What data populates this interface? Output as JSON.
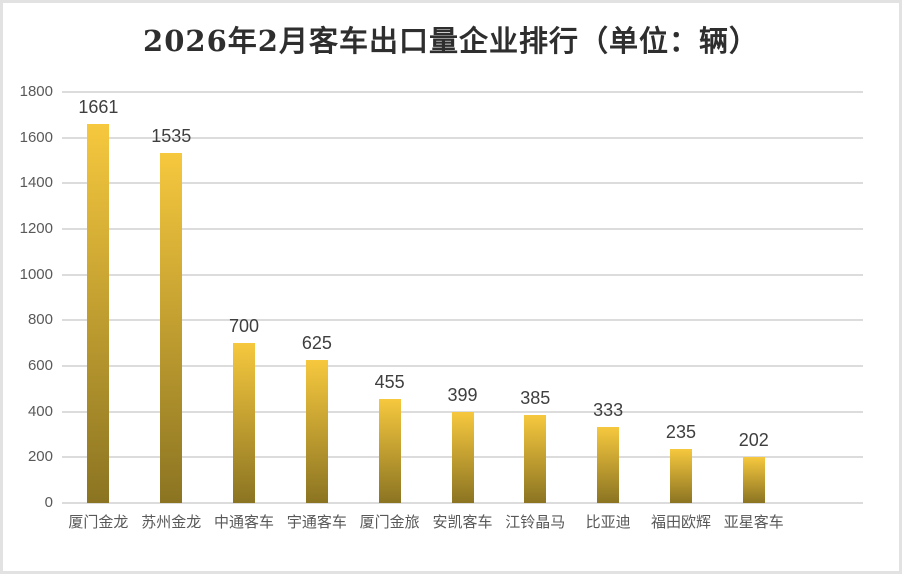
{
  "title": "2026年2月客车出口量企业排行（单位：辆）",
  "chart_data": {
    "type": "bar",
    "title": "2026年2月客车出口量企业排行（单位：辆）",
    "unit_label": "辆",
    "categories": [
      "厦门金龙",
      "苏州金龙",
      "中通客车",
      "宇通客车",
      "厦门金旅",
      "安凯客车",
      "江铃晶马",
      "比亚迪",
      "福田欧辉",
      "亚星客车"
    ],
    "values": [
      1661,
      1535,
      700,
      625,
      455,
      399,
      385,
      333,
      235,
      202
    ],
    "value_labels": [
      "1661",
      "1535",
      "700",
      "625",
      "455",
      "399",
      "385",
      "333",
      "235",
      "202"
    ],
    "xlabel": "",
    "ylabel": "",
    "ylim": [
      0,
      1800
    ],
    "ytick_step": 200,
    "y_ticks": [
      1800,
      1600,
      1400,
      1200,
      1000,
      800,
      600,
      400,
      200,
      0
    ],
    "grid": true,
    "legend": "none",
    "extra_right_slots": 1,
    "colors": {
      "bar_gradient_top": "#f6c83e",
      "bar_gradient_bottom": "#8b7422",
      "gridline": "#dcdcdc",
      "axis_text": "#595959",
      "value_label_text": "#3f3f3f",
      "title_text": "#2e2e2e",
      "frame_border": "#e2e2e2",
      "background": "#ffffff"
    }
  }
}
